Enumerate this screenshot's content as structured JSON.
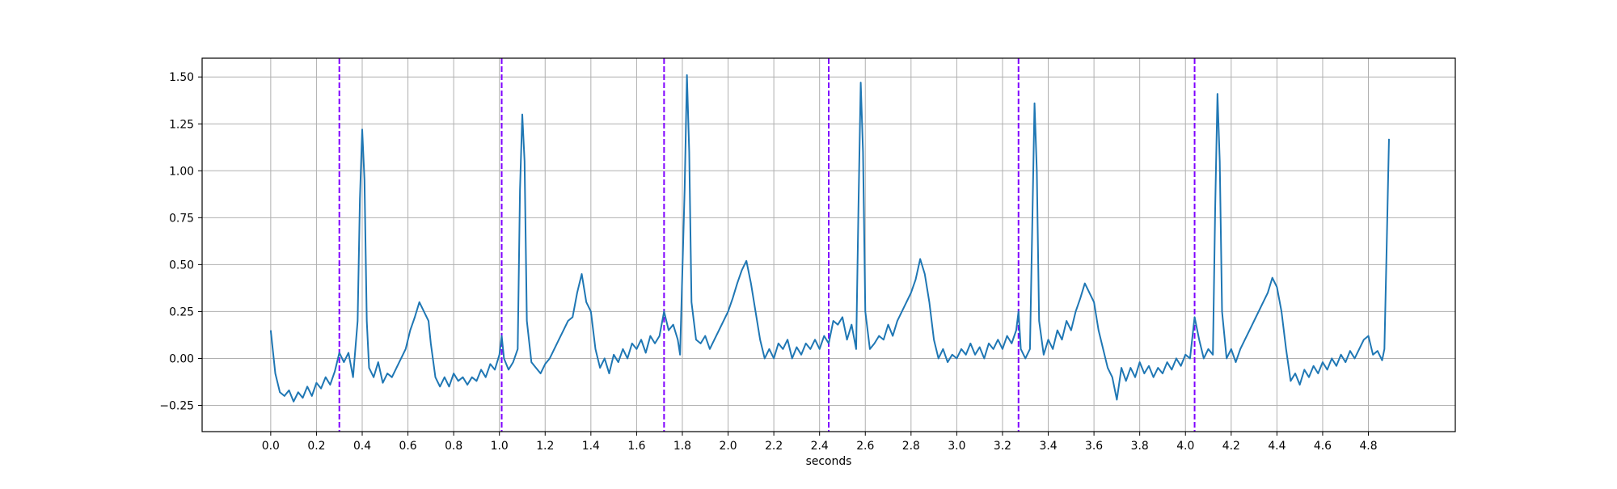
{
  "chart_data": {
    "type": "line",
    "title": "",
    "xlabel": "seconds",
    "ylabel": "",
    "xlim": [
      -0.3,
      5.18
    ],
    "ylim": [
      -0.39,
      1.6
    ],
    "x_ticks": [
      "0.0",
      "0.2",
      "0.4",
      "0.6",
      "0.8",
      "1.0",
      "1.2",
      "1.4",
      "1.6",
      "1.8",
      "2.0",
      "2.2",
      "2.4",
      "2.6",
      "2.8",
      "3.0",
      "3.2",
      "3.4",
      "3.6",
      "3.8",
      "4.0",
      "4.2",
      "4.4",
      "4.6",
      "4.8"
    ],
    "y_ticks": [
      "−0.25",
      "0.00",
      "0.25",
      "0.50",
      "0.75",
      "1.00",
      "1.25",
      "1.50"
    ],
    "grid": true,
    "line_color": "#1f77b4",
    "marker_color": "#7f00ff",
    "vertical_markers": [
      0.3,
      1.01,
      1.72,
      2.44,
      3.27,
      4.04
    ],
    "series": [
      {
        "points": [
          [
            0.0,
            0.15
          ],
          [
            0.02,
            -0.08
          ],
          [
            0.04,
            -0.18
          ],
          [
            0.06,
            -0.2
          ],
          [
            0.08,
            -0.17
          ],
          [
            0.1,
            -0.23
          ],
          [
            0.12,
            -0.18
          ],
          [
            0.14,
            -0.21
          ],
          [
            0.16,
            -0.15
          ],
          [
            0.18,
            -0.2
          ],
          [
            0.2,
            -0.13
          ],
          [
            0.22,
            -0.16
          ],
          [
            0.24,
            -0.1
          ],
          [
            0.26,
            -0.14
          ],
          [
            0.28,
            -0.07
          ],
          [
            0.3,
            0.03
          ],
          [
            0.32,
            -0.02
          ],
          [
            0.34,
            0.03
          ],
          [
            0.36,
            -0.1
          ],
          [
            0.38,
            0.2
          ],
          [
            0.39,
            0.85
          ],
          [
            0.4,
            1.22
          ],
          [
            0.41,
            0.95
          ],
          [
            0.42,
            0.2
          ],
          [
            0.43,
            -0.05
          ],
          [
            0.45,
            -0.1
          ],
          [
            0.47,
            -0.02
          ],
          [
            0.49,
            -0.13
          ],
          [
            0.51,
            -0.08
          ],
          [
            0.53,
            -0.1
          ],
          [
            0.55,
            -0.05
          ],
          [
            0.57,
            0.0
          ],
          [
            0.59,
            0.05
          ],
          [
            0.61,
            0.15
          ],
          [
            0.63,
            0.22
          ],
          [
            0.65,
            0.3
          ],
          [
            0.67,
            0.25
          ],
          [
            0.69,
            0.2
          ],
          [
            0.7,
            0.08
          ],
          [
            0.72,
            -0.1
          ],
          [
            0.74,
            -0.15
          ],
          [
            0.76,
            -0.1
          ],
          [
            0.78,
            -0.15
          ],
          [
            0.8,
            -0.08
          ],
          [
            0.82,
            -0.12
          ],
          [
            0.84,
            -0.1
          ],
          [
            0.86,
            -0.14
          ],
          [
            0.88,
            -0.1
          ],
          [
            0.9,
            -0.12
          ],
          [
            0.92,
            -0.06
          ],
          [
            0.94,
            -0.1
          ],
          [
            0.96,
            -0.03
          ],
          [
            0.98,
            -0.06
          ],
          [
            1.0,
            0.02
          ],
          [
            1.01,
            0.12
          ],
          [
            1.02,
            0.0
          ],
          [
            1.04,
            -0.06
          ],
          [
            1.06,
            -0.02
          ],
          [
            1.08,
            0.05
          ],
          [
            1.09,
            0.9
          ],
          [
            1.1,
            1.3
          ],
          [
            1.11,
            1.05
          ],
          [
            1.12,
            0.2
          ],
          [
            1.14,
            -0.02
          ],
          [
            1.16,
            -0.05
          ],
          [
            1.18,
            -0.08
          ],
          [
            1.2,
            -0.03
          ],
          [
            1.22,
            0.0
          ],
          [
            1.24,
            0.05
          ],
          [
            1.26,
            0.1
          ],
          [
            1.28,
            0.15
          ],
          [
            1.3,
            0.2
          ],
          [
            1.32,
            0.22
          ],
          [
            1.34,
            0.35
          ],
          [
            1.36,
            0.45
          ],
          [
            1.38,
            0.3
          ],
          [
            1.4,
            0.25
          ],
          [
            1.42,
            0.05
          ],
          [
            1.44,
            -0.05
          ],
          [
            1.46,
            0.0
          ],
          [
            1.48,
            -0.08
          ],
          [
            1.5,
            0.02
          ],
          [
            1.52,
            -0.02
          ],
          [
            1.54,
            0.05
          ],
          [
            1.56,
            0.0
          ],
          [
            1.58,
            0.08
          ],
          [
            1.6,
            0.05
          ],
          [
            1.62,
            0.1
          ],
          [
            1.64,
            0.03
          ],
          [
            1.66,
            0.12
          ],
          [
            1.68,
            0.08
          ],
          [
            1.7,
            0.12
          ],
          [
            1.72,
            0.25
          ],
          [
            1.74,
            0.15
          ],
          [
            1.76,
            0.18
          ],
          [
            1.78,
            0.1
          ],
          [
            1.79,
            0.02
          ],
          [
            1.81,
            0.9
          ],
          [
            1.82,
            1.51
          ],
          [
            1.83,
            1.1
          ],
          [
            1.84,
            0.3
          ],
          [
            1.86,
            0.1
          ],
          [
            1.88,
            0.08
          ],
          [
            1.9,
            0.12
          ],
          [
            1.92,
            0.05
          ],
          [
            1.94,
            0.1
          ],
          [
            1.96,
            0.15
          ],
          [
            1.98,
            0.2
          ],
          [
            2.0,
            0.25
          ],
          [
            2.02,
            0.32
          ],
          [
            2.04,
            0.4
          ],
          [
            2.06,
            0.47
          ],
          [
            2.08,
            0.52
          ],
          [
            2.1,
            0.4
          ],
          [
            2.12,
            0.25
          ],
          [
            2.14,
            0.1
          ],
          [
            2.16,
            0.0
          ],
          [
            2.18,
            0.05
          ],
          [
            2.2,
            0.0
          ],
          [
            2.22,
            0.08
          ],
          [
            2.24,
            0.05
          ],
          [
            2.26,
            0.1
          ],
          [
            2.28,
            0.0
          ],
          [
            2.3,
            0.06
          ],
          [
            2.32,
            0.02
          ],
          [
            2.34,
            0.08
          ],
          [
            2.36,
            0.05
          ],
          [
            2.38,
            0.1
          ],
          [
            2.4,
            0.05
          ],
          [
            2.42,
            0.12
          ],
          [
            2.44,
            0.08
          ],
          [
            2.46,
            0.2
          ],
          [
            2.48,
            0.18
          ],
          [
            2.5,
            0.22
          ],
          [
            2.52,
            0.1
          ],
          [
            2.54,
            0.18
          ],
          [
            2.56,
            0.05
          ],
          [
            2.57,
            0.8
          ],
          [
            2.58,
            1.47
          ],
          [
            2.59,
            1.1
          ],
          [
            2.6,
            0.25
          ],
          [
            2.62,
            0.05
          ],
          [
            2.64,
            0.08
          ],
          [
            2.66,
            0.12
          ],
          [
            2.68,
            0.1
          ],
          [
            2.7,
            0.18
          ],
          [
            2.72,
            0.12
          ],
          [
            2.74,
            0.2
          ],
          [
            2.76,
            0.25
          ],
          [
            2.78,
            0.3
          ],
          [
            2.8,
            0.35
          ],
          [
            2.82,
            0.42
          ],
          [
            2.84,
            0.53
          ],
          [
            2.86,
            0.45
          ],
          [
            2.88,
            0.3
          ],
          [
            2.9,
            0.1
          ],
          [
            2.92,
            0.0
          ],
          [
            2.94,
            0.05
          ],
          [
            2.96,
            -0.02
          ],
          [
            2.98,
            0.02
          ],
          [
            3.0,
            0.0
          ],
          [
            3.02,
            0.05
          ],
          [
            3.04,
            0.02
          ],
          [
            3.06,
            0.08
          ],
          [
            3.08,
            0.02
          ],
          [
            3.1,
            0.06
          ],
          [
            3.12,
            0.0
          ],
          [
            3.14,
            0.08
          ],
          [
            3.16,
            0.05
          ],
          [
            3.18,
            0.1
          ],
          [
            3.2,
            0.05
          ],
          [
            3.22,
            0.12
          ],
          [
            3.24,
            0.08
          ],
          [
            3.26,
            0.15
          ],
          [
            3.27,
            0.25
          ],
          [
            3.28,
            0.05
          ],
          [
            3.3,
            0.0
          ],
          [
            3.32,
            0.05
          ],
          [
            3.33,
            0.7
          ],
          [
            3.34,
            1.36
          ],
          [
            3.35,
            1.0
          ],
          [
            3.36,
            0.2
          ],
          [
            3.38,
            0.02
          ],
          [
            3.4,
            0.1
          ],
          [
            3.42,
            0.05
          ],
          [
            3.44,
            0.15
          ],
          [
            3.46,
            0.1
          ],
          [
            3.48,
            0.2
          ],
          [
            3.5,
            0.15
          ],
          [
            3.52,
            0.25
          ],
          [
            3.54,
            0.32
          ],
          [
            3.56,
            0.4
          ],
          [
            3.58,
            0.35
          ],
          [
            3.6,
            0.3
          ],
          [
            3.62,
            0.15
          ],
          [
            3.64,
            0.05
          ],
          [
            3.66,
            -0.05
          ],
          [
            3.68,
            -0.1
          ],
          [
            3.7,
            -0.22
          ],
          [
            3.72,
            -0.05
          ],
          [
            3.74,
            -0.12
          ],
          [
            3.76,
            -0.05
          ],
          [
            3.78,
            -0.1
          ],
          [
            3.8,
            -0.02
          ],
          [
            3.82,
            -0.08
          ],
          [
            3.84,
            -0.04
          ],
          [
            3.86,
            -0.1
          ],
          [
            3.88,
            -0.05
          ],
          [
            3.9,
            -0.08
          ],
          [
            3.92,
            -0.02
          ],
          [
            3.94,
            -0.06
          ],
          [
            3.96,
            0.0
          ],
          [
            3.98,
            -0.04
          ],
          [
            4.0,
            0.02
          ],
          [
            4.02,
            0.0
          ],
          [
            4.04,
            0.22
          ],
          [
            4.06,
            0.1
          ],
          [
            4.08,
            0.0
          ],
          [
            4.1,
            0.05
          ],
          [
            4.12,
            0.02
          ],
          [
            4.13,
            0.8
          ],
          [
            4.14,
            1.41
          ],
          [
            4.15,
            1.05
          ],
          [
            4.16,
            0.25
          ],
          [
            4.18,
            0.0
          ],
          [
            4.2,
            0.05
          ],
          [
            4.22,
            -0.02
          ],
          [
            4.24,
            0.05
          ],
          [
            4.26,
            0.1
          ],
          [
            4.28,
            0.15
          ],
          [
            4.3,
            0.2
          ],
          [
            4.32,
            0.25
          ],
          [
            4.34,
            0.3
          ],
          [
            4.36,
            0.35
          ],
          [
            4.38,
            0.43
          ],
          [
            4.4,
            0.38
          ],
          [
            4.42,
            0.25
          ],
          [
            4.44,
            0.05
          ],
          [
            4.46,
            -0.12
          ],
          [
            4.48,
            -0.08
          ],
          [
            4.5,
            -0.14
          ],
          [
            4.52,
            -0.06
          ],
          [
            4.54,
            -0.1
          ],
          [
            4.56,
            -0.04
          ],
          [
            4.58,
            -0.08
          ],
          [
            4.6,
            -0.02
          ],
          [
            4.62,
            -0.06
          ],
          [
            4.64,
            0.0
          ],
          [
            4.66,
            -0.04
          ],
          [
            4.68,
            0.02
          ],
          [
            4.7,
            -0.02
          ],
          [
            4.72,
            0.04
          ],
          [
            4.74,
            0.0
          ],
          [
            4.76,
            0.05
          ],
          [
            4.78,
            0.1
          ],
          [
            4.8,
            0.12
          ],
          [
            4.82,
            0.02
          ],
          [
            4.84,
            0.04
          ],
          [
            4.86,
            -0.01
          ],
          [
            4.87,
            0.05
          ],
          [
            4.88,
            0.6
          ],
          [
            4.89,
            1.17
          ]
        ]
      }
    ]
  }
}
